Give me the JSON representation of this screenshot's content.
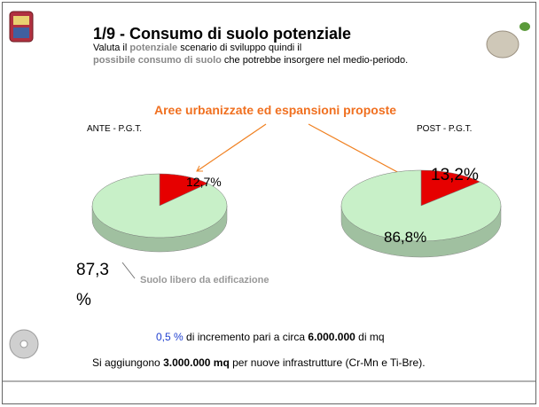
{
  "slide": {
    "title": "1/9 - Consumo di suolo potenziale",
    "intro_line1": [
      "Valuta il ",
      "potenziale",
      " scenario di sviluppo quindi il"
    ],
    "intro_line2": [
      "possibile consumo di suolo",
      " che potrebbe insorgere nel medio-periodo."
    ],
    "chart_heading": "Aree urbanizzate ed espansioni proposte",
    "annotation": "Suolo libero da edificazione",
    "note1": [
      "0,5 %",
      " di incremento pari a circa ",
      "6.000.000",
      " di mq"
    ],
    "note2": [
      "Si aggiungono ",
      "3.000.000 mq",
      " per nuove infrastrutture (Cr-Mn e Ti-Bre)."
    ]
  },
  "chart_data": [
    {
      "type": "pie",
      "title": "ANTE - P.G.T.",
      "values": [
        12.7,
        87.3
      ],
      "value_labels": [
        "12,7%",
        "87,3 %"
      ],
      "colors": [
        "#e60000",
        "#c8f0c8"
      ]
    },
    {
      "type": "pie",
      "title": "POST - P.G.T.",
      "values": [
        13.2,
        86.8
      ],
      "value_labels": [
        "13,2%",
        "86,8%"
      ],
      "colors": [
        "#e60000",
        "#c8f0c8"
      ]
    }
  ]
}
